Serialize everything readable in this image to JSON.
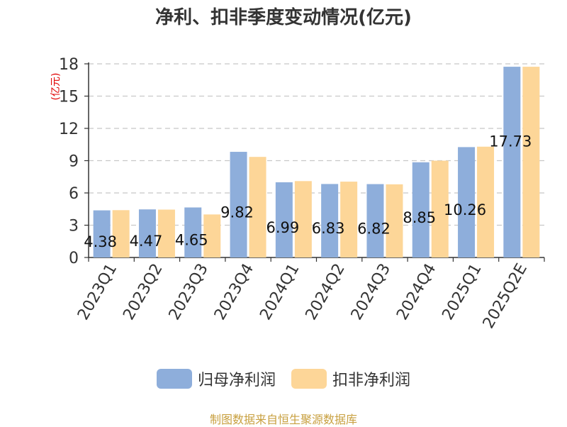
{
  "chart_data": {
    "type": "bar",
    "title": "净利、扣非季度变动情况(亿元)",
    "ylabel": "(亿元)",
    "xlabel": "",
    "ylim": [
      0,
      18
    ],
    "yticks": [
      0,
      3,
      6,
      9,
      12,
      15,
      18
    ],
    "grid": true,
    "legend_position": "bottom",
    "categories": [
      "2023Q1",
      "2023Q2",
      "2023Q3",
      "2023Q4",
      "2024Q1",
      "2024Q2",
      "2024Q3",
      "2024Q4",
      "2025Q1",
      "2025Q2E"
    ],
    "series": [
      {
        "name": "归母净利润",
        "color": "#8eaedb",
        "values": [
          4.38,
          4.47,
          4.65,
          9.82,
          6.99,
          6.83,
          6.82,
          8.85,
          10.26,
          17.73
        ]
      },
      {
        "name": "扣非净利润",
        "color": "#fdd698",
        "values": [
          4.4,
          4.45,
          4.0,
          9.35,
          7.1,
          7.05,
          6.8,
          9.0,
          10.3,
          17.73
        ]
      }
    ],
    "data_labels": [
      "4.38",
      "4.47",
      "4.65",
      "9.82",
      "6.99",
      "6.83",
      "6.82",
      "8.85",
      "10.26",
      "17.73"
    ]
  },
  "source": "制图数据来自恒生聚源数据库"
}
